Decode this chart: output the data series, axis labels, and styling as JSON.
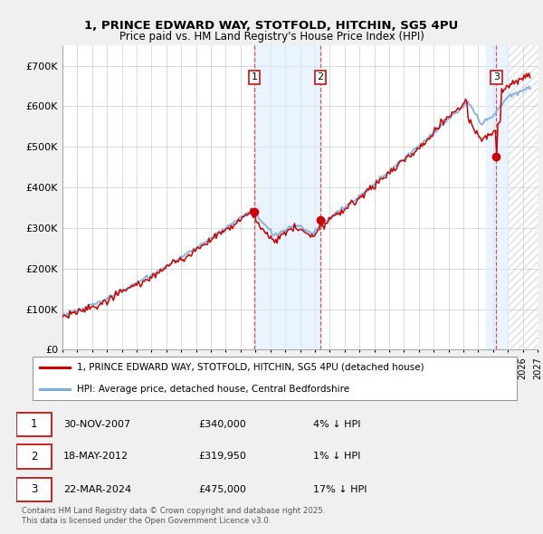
{
  "title": "1, PRINCE EDWARD WAY, STOTFOLD, HITCHIN, SG5 4PU",
  "subtitle": "Price paid vs. HM Land Registry's House Price Index (HPI)",
  "legend_label_red": "1, PRINCE EDWARD WAY, STOTFOLD, HITCHIN, SG5 4PU (detached house)",
  "legend_label_blue": "HPI: Average price, detached house, Central Bedfordshire",
  "footer": "Contains HM Land Registry data © Crown copyright and database right 2025.\nThis data is licensed under the Open Government Licence v3.0.",
  "xmin": 1995.0,
  "xmax": 2027.0,
  "ymin": 0,
  "ymax": 750000,
  "yticks": [
    0,
    100000,
    200000,
    300000,
    400000,
    500000,
    600000,
    700000
  ],
  "ytick_labels": [
    "£0",
    "£100K",
    "£200K",
    "£300K",
    "£400K",
    "£500K",
    "£600K",
    "£700K"
  ],
  "transactions": [
    {
      "num": 1,
      "date": "30-NOV-2007",
      "price": 340000,
      "pct": "4%",
      "dir": "↓",
      "x": 2007.92
    },
    {
      "num": 2,
      "date": "18-MAY-2012",
      "price": 319950,
      "pct": "1%",
      "dir": "↓",
      "x": 2012.38
    },
    {
      "num": 3,
      "date": "22-MAR-2024",
      "price": 475000,
      "pct": "17%",
      "dir": "↓",
      "x": 2024.22
    }
  ],
  "background_color": "#f0f0f0",
  "plot_bg_color": "#ffffff",
  "shade_color": "#ddeeff",
  "grid_color": "#cccccc",
  "red_line_color": "#cc0000",
  "blue_line_color": "#7aaddb",
  "future_start": 2025.0
}
